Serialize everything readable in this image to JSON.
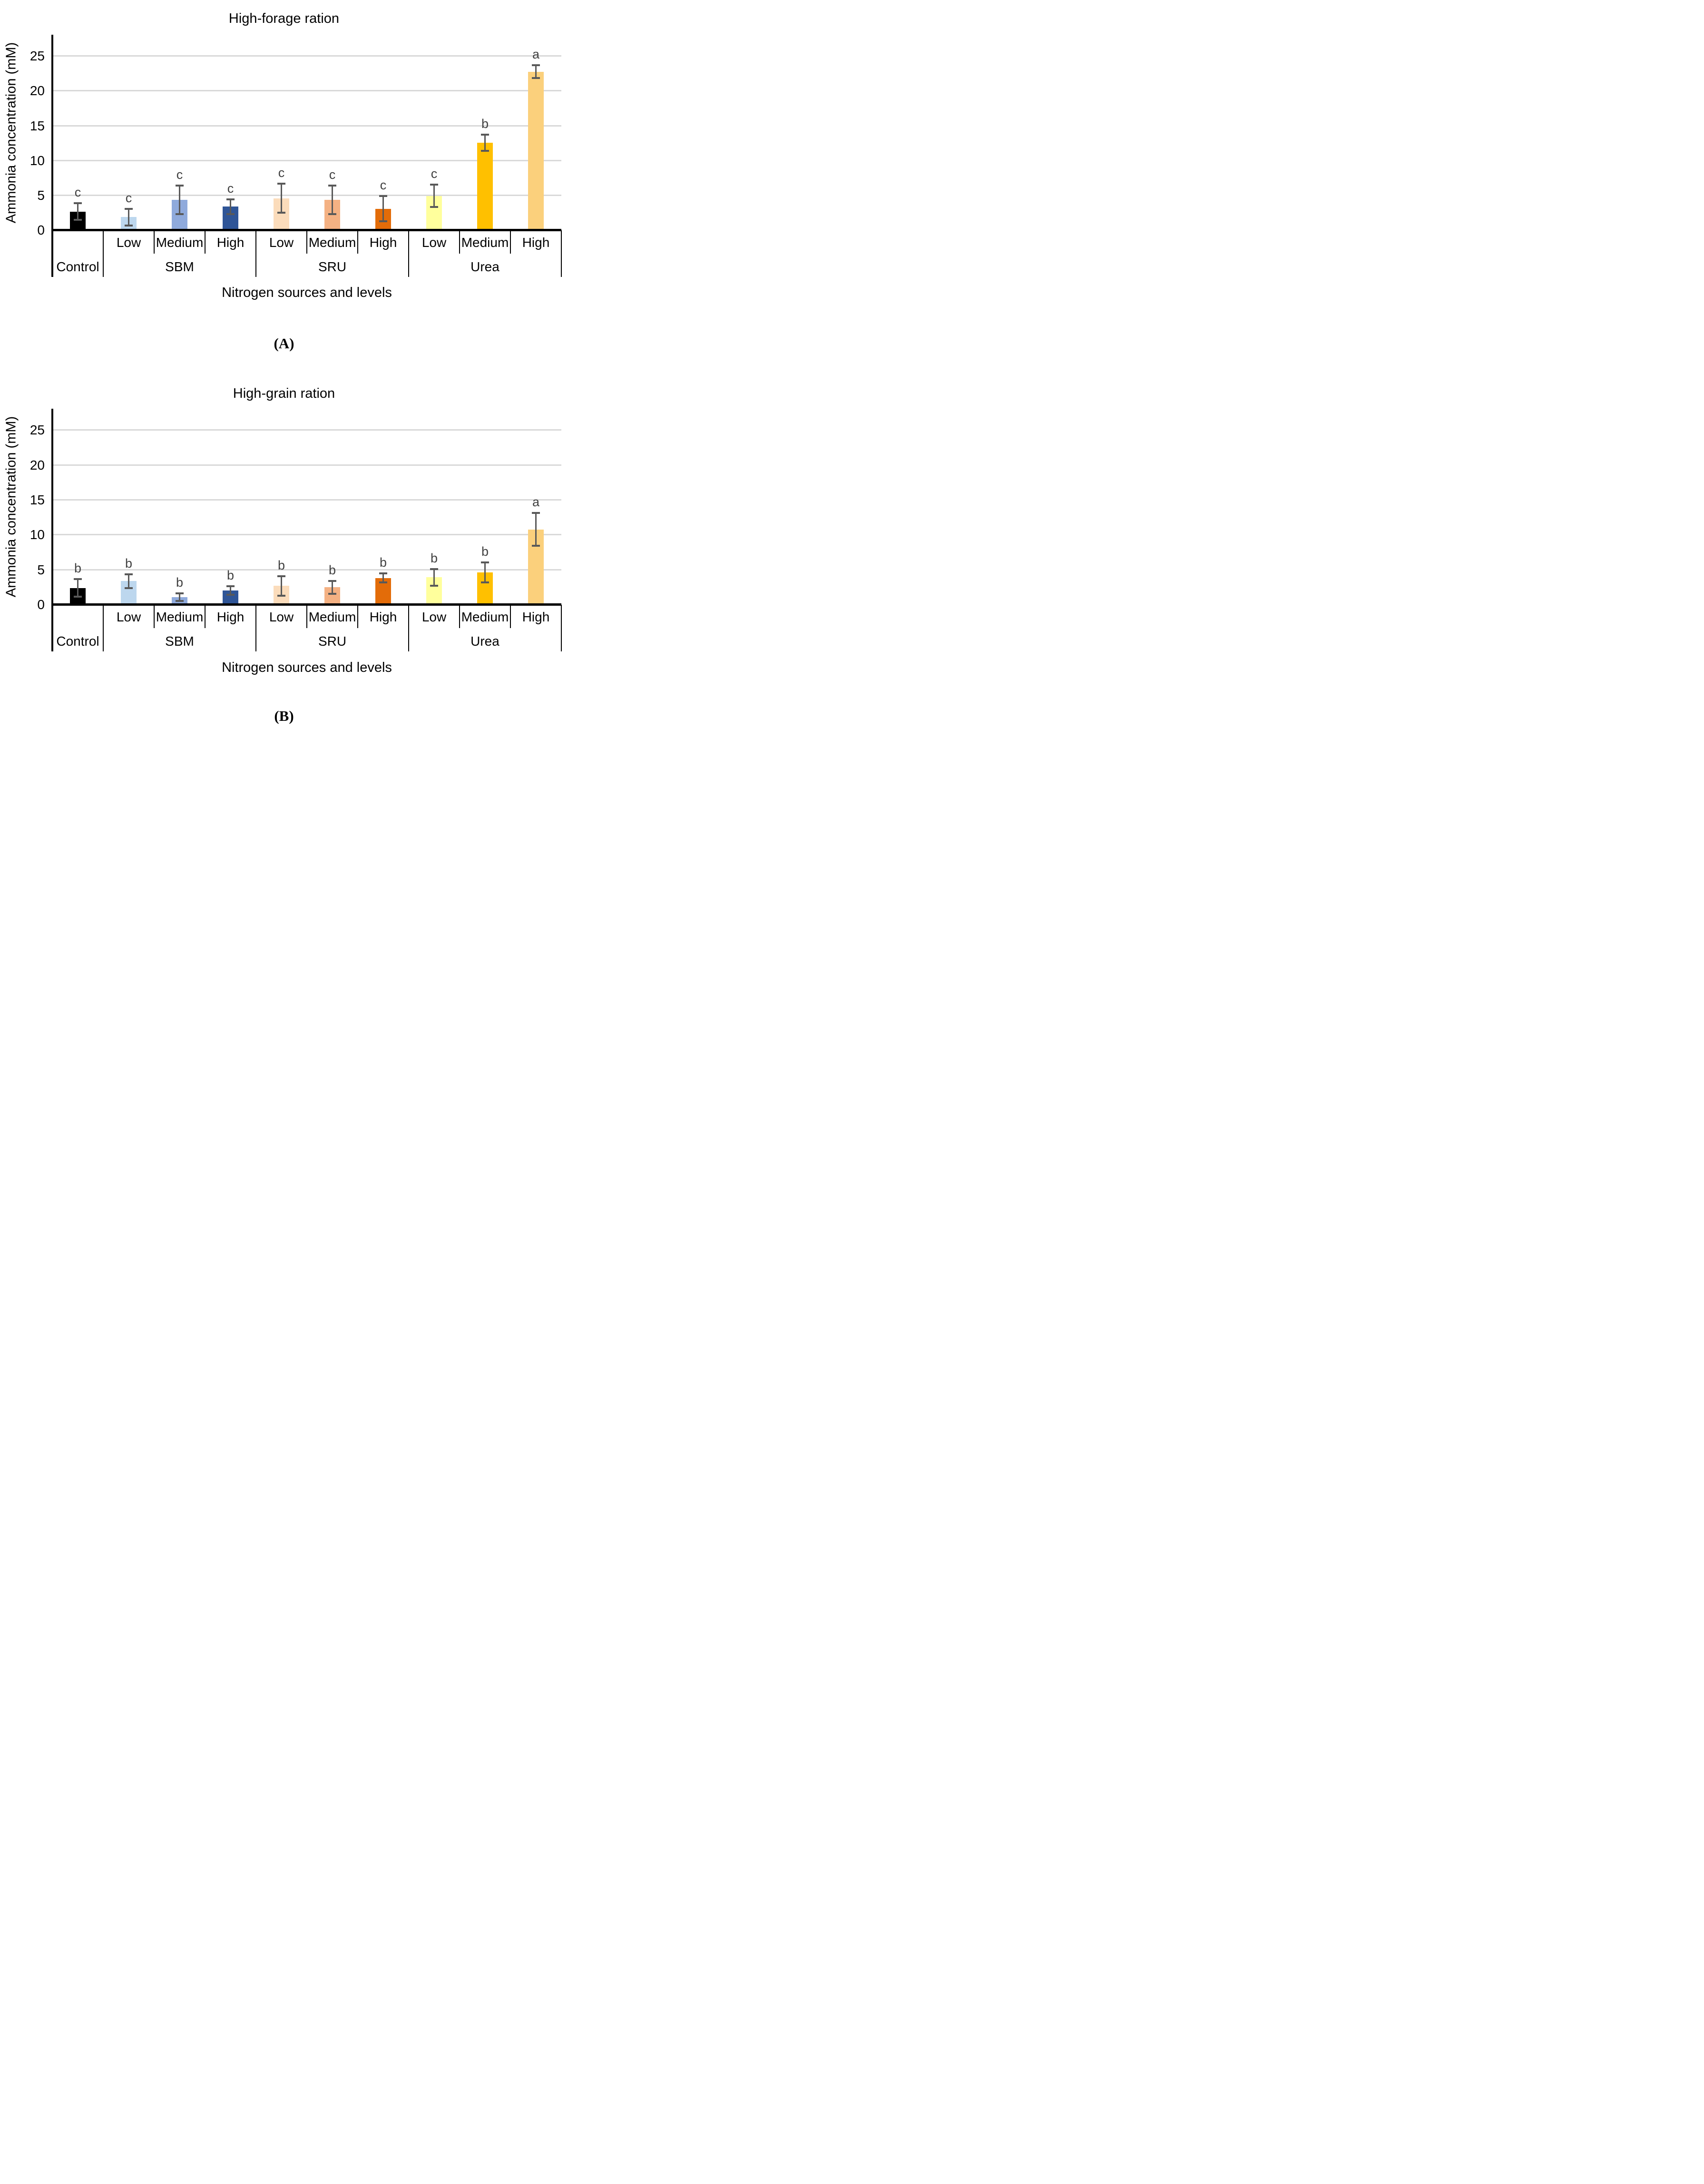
{
  "palette": {
    "error_bar": "#595959",
    "significance_letter": "#404040",
    "gridline": "#d9d9d9",
    "axis": "#000000",
    "background": "#ffffff"
  },
  "chart_data": [
    {
      "type": "bar",
      "title": "High-forage ration",
      "xlabel": "Nitrogen sources and levels",
      "ylabel": "Ammonia concentration (mM)",
      "caption": "(A)",
      "ylim": [
        0,
        28.1
      ],
      "yticks": [
        0,
        5,
        10,
        15,
        20,
        25
      ],
      "grid": "horizontal",
      "legend": "none",
      "groups": [
        {
          "label": "Control",
          "levels": [
            ""
          ]
        },
        {
          "label": "SBM",
          "levels": [
            "Low",
            "Medium",
            "High"
          ]
        },
        {
          "label": "SRU",
          "levels": [
            "Low",
            "Medium",
            "High"
          ]
        },
        {
          "label": "Urea",
          "levels": [
            "Low",
            "Medium",
            "High"
          ]
        }
      ],
      "bars": [
        {
          "group": "Control",
          "level": "",
          "value": 2.7,
          "error": 1.2,
          "letter": "c",
          "color": "#000000"
        },
        {
          "group": "SBM",
          "level": "Low",
          "value": 1.9,
          "error": 1.2,
          "letter": "c",
          "color": "#bdd7ee"
        },
        {
          "group": "SBM",
          "level": "Medium",
          "value": 4.35,
          "error": 2.05,
          "letter": "c",
          "color": "#8faadc"
        },
        {
          "group": "SBM",
          "level": "High",
          "value": 3.4,
          "error": 1.05,
          "letter": "c",
          "color": "#2f5597"
        },
        {
          "group": "SRU",
          "level": "Low",
          "value": 4.6,
          "error": 2.1,
          "letter": "c",
          "color": "#fbdcbb"
        },
        {
          "group": "SRU",
          "level": "Medium",
          "value": 4.4,
          "error": 2.05,
          "letter": "c",
          "color": "#f4b183"
        },
        {
          "group": "SRU",
          "level": "High",
          "value": 3.1,
          "error": 1.8,
          "letter": "c",
          "color": "#e36c09"
        },
        {
          "group": "Urea",
          "level": "Low",
          "value": 4.95,
          "error": 1.6,
          "letter": "c",
          "color": "#ffff9c"
        },
        {
          "group": "Urea",
          "level": "Medium",
          "value": 12.6,
          "error": 1.15,
          "letter": "b",
          "color": "#ffc000"
        },
        {
          "group": "Urea",
          "level": "High",
          "value": 22.8,
          "error": 0.95,
          "letter": "a",
          "color": "#fbd07c"
        }
      ]
    },
    {
      "type": "bar",
      "title": "High-grain ration",
      "xlabel": "Nitrogen sources and levels",
      "ylabel": "Ammonia concentration (mM)",
      "caption": "(B)",
      "ylim": [
        0,
        28.1
      ],
      "yticks": [
        0,
        5,
        10,
        15,
        20,
        25
      ],
      "grid": "horizontal",
      "legend": "none",
      "groups": [
        {
          "label": "Control",
          "levels": [
            ""
          ]
        },
        {
          "label": "SBM",
          "levels": [
            "Low",
            "Medium",
            "High"
          ]
        },
        {
          "label": "SRU",
          "levels": [
            "Low",
            "Medium",
            "High"
          ]
        },
        {
          "label": "Urea",
          "levels": [
            "Low",
            "Medium",
            "High"
          ]
        }
      ],
      "bars": [
        {
          "group": "Control",
          "level": "",
          "value": 2.4,
          "error": 1.25,
          "letter": "b",
          "color": "#000000"
        },
        {
          "group": "SBM",
          "level": "Low",
          "value": 3.4,
          "error": 1.0,
          "letter": "b",
          "color": "#bdd7ee"
        },
        {
          "group": "SBM",
          "level": "Medium",
          "value": 1.1,
          "error": 0.55,
          "letter": "b",
          "color": "#8faadc"
        },
        {
          "group": "SBM",
          "level": "High",
          "value": 2.05,
          "error": 0.6,
          "letter": "b",
          "color": "#2f5597"
        },
        {
          "group": "SRU",
          "level": "Low",
          "value": 2.7,
          "error": 1.4,
          "letter": "b",
          "color": "#fbdcbb"
        },
        {
          "group": "SRU",
          "level": "Medium",
          "value": 2.5,
          "error": 0.9,
          "letter": "b",
          "color": "#f4b183"
        },
        {
          "group": "SRU",
          "level": "High",
          "value": 3.85,
          "error": 0.65,
          "letter": "b",
          "color": "#e36c09"
        },
        {
          "group": "Urea",
          "level": "Low",
          "value": 3.95,
          "error": 1.2,
          "letter": "b",
          "color": "#ffff9c"
        },
        {
          "group": "Urea",
          "level": "Medium",
          "value": 4.65,
          "error": 1.45,
          "letter": "b",
          "color": "#ffc000"
        },
        {
          "group": "Urea",
          "level": "High",
          "value": 10.8,
          "error": 2.35,
          "letter": "a",
          "color": "#fbd07c"
        }
      ]
    }
  ]
}
